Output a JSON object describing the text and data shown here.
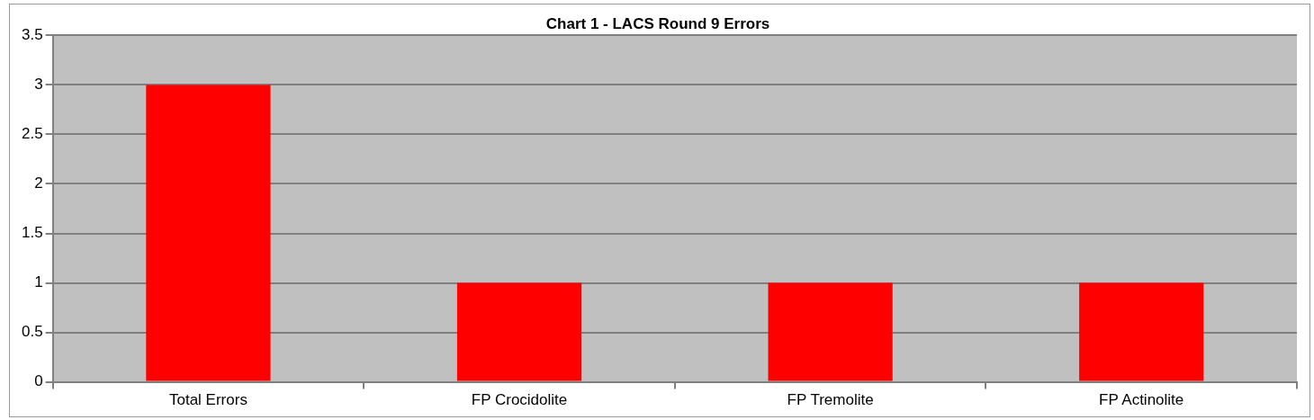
{
  "chart_data": {
    "type": "bar",
    "title": "Chart 1 - LACS Round 9 Errors",
    "categories": [
      "Total Errors",
      "FP Crocidolite",
      "FP Tremolite",
      "FP Actinolite"
    ],
    "values": [
      3,
      1,
      1,
      1
    ],
    "color": "#ff0000",
    "ylim": [
      0,
      3.5
    ],
    "yticks": [
      0,
      0.5,
      1,
      1.5,
      2,
      2.5,
      3,
      3.5
    ],
    "grid": "y",
    "legend": false
  }
}
